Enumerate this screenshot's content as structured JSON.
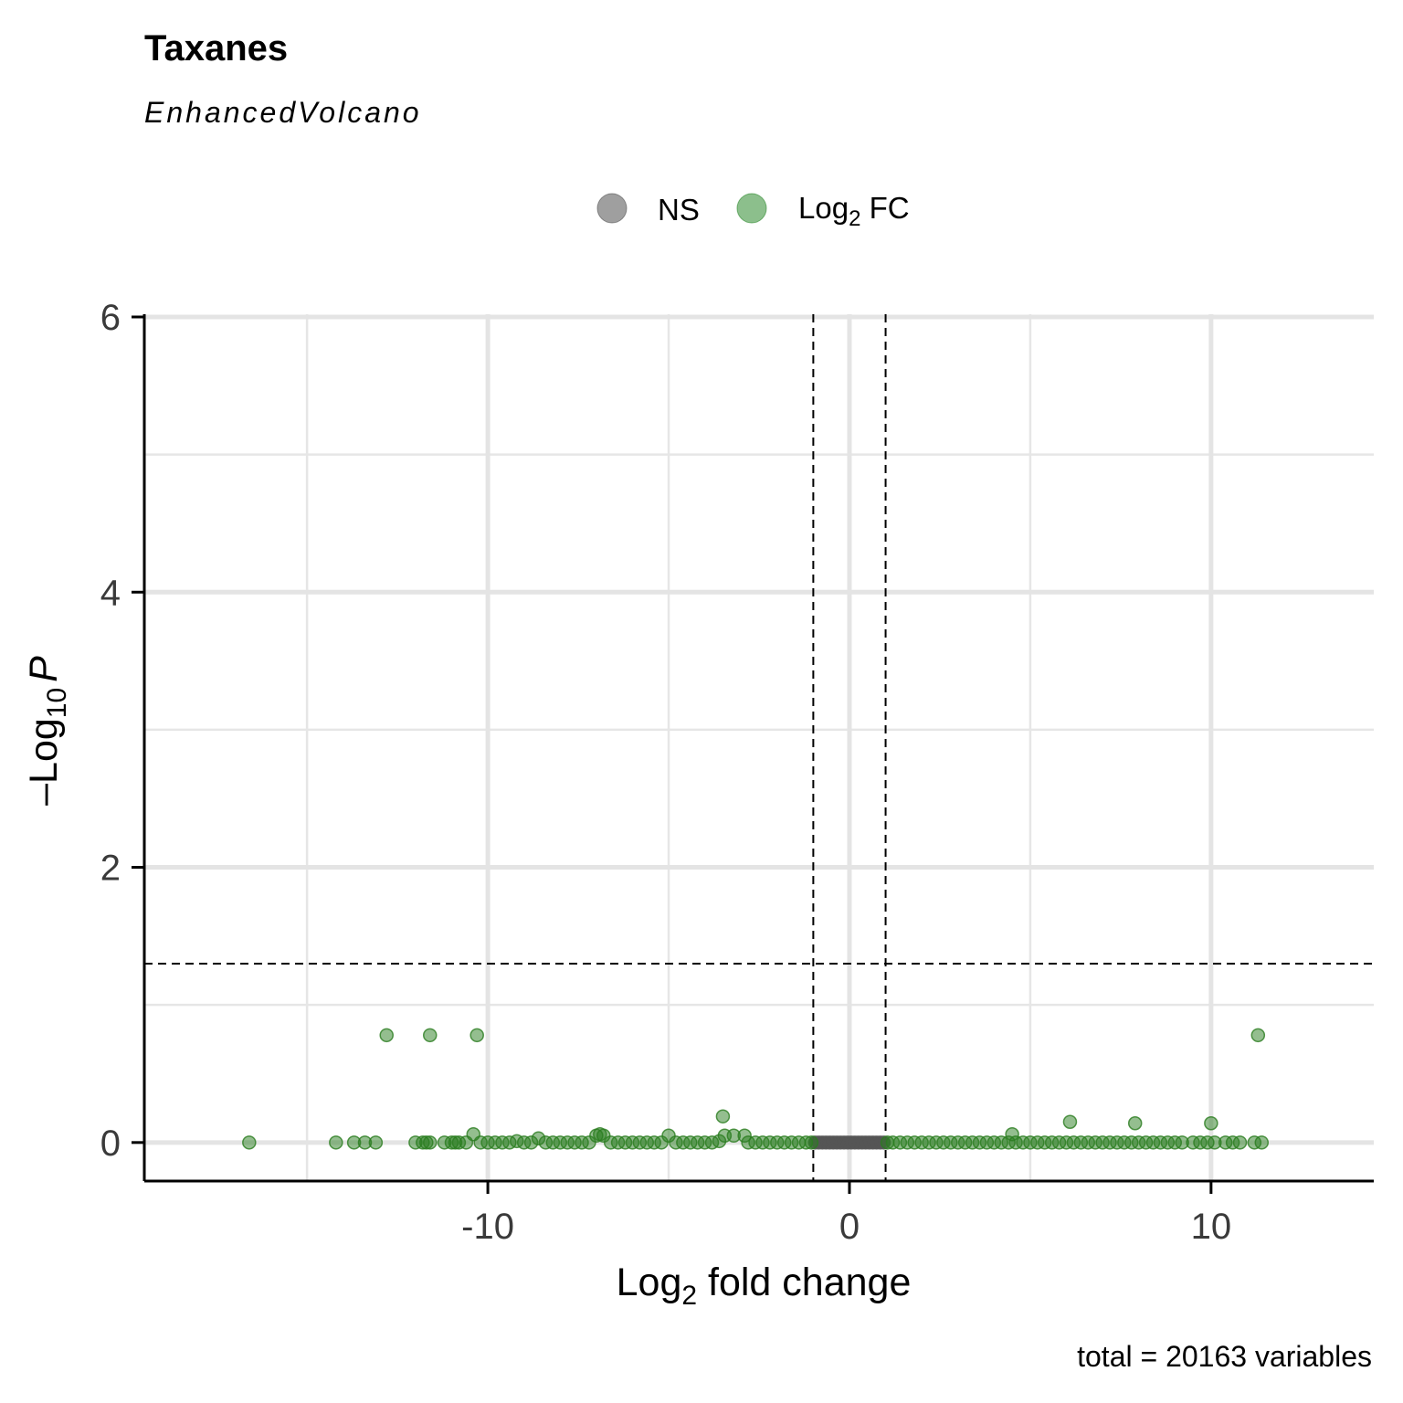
{
  "chart_data": {
    "type": "scatter",
    "title": "Taxanes",
    "subtitle": "EnhancedVolcano",
    "xlabel": {
      "main": "Log",
      "sub": "2",
      "rest": " fold change"
    },
    "ylabel": {
      "prefix": "–Log",
      "sub": "10",
      "italic": "P"
    },
    "caption": "total = 20163 variables",
    "xlim": [
      -19.5,
      14.5
    ],
    "ylim": [
      -0.28,
      6.02
    ],
    "x_ticks": [
      -10,
      0,
      10
    ],
    "x_tick_labels": [
      "-10",
      "0",
      "10"
    ],
    "y_ticks": [
      0,
      2,
      4,
      6
    ],
    "y_tick_labels": [
      "0",
      "2",
      "4",
      "6"
    ],
    "x_minor_gridlines": [
      -15,
      -5,
      5
    ],
    "y_minor_gridlines": [
      1,
      3,
      5
    ],
    "grid": true,
    "fc_cutoff": 1.0,
    "p_cutoff_neglog10": 1.3,
    "legend": {
      "position": "top",
      "items": [
        {
          "name": "NS",
          "color": "#7f7f7f"
        },
        {
          "name": "Log",
          "sub": "2",
          "after": " FC",
          "color": "#2e8b2e"
        }
      ]
    },
    "colors": {
      "ns": "#555555",
      "fc": "#2a7d1f"
    },
    "series": [
      {
        "name": "NS",
        "points": [
          [
            -0.95,
            0
          ],
          [
            -0.85,
            0
          ],
          [
            -0.75,
            0
          ],
          [
            -0.65,
            0
          ],
          [
            -0.55,
            0
          ],
          [
            -0.45,
            0
          ],
          [
            -0.35,
            0
          ],
          [
            -0.25,
            0
          ],
          [
            -0.15,
            0
          ],
          [
            -0.05,
            0
          ],
          [
            0.05,
            0
          ],
          [
            0.15,
            0
          ],
          [
            0.25,
            0
          ],
          [
            0.35,
            0
          ],
          [
            0.45,
            0
          ],
          [
            0.55,
            0
          ],
          [
            0.65,
            0
          ],
          [
            0.75,
            0
          ],
          [
            0.85,
            0
          ],
          [
            0.95,
            0
          ]
        ]
      },
      {
        "name": "Log2 FC",
        "points": [
          [
            -16.6,
            0
          ],
          [
            -14.2,
            0
          ],
          [
            -13.7,
            0
          ],
          [
            -13.4,
            0
          ],
          [
            -13.1,
            0
          ],
          [
            -12.0,
            0
          ],
          [
            -11.8,
            0
          ],
          [
            -11.7,
            0
          ],
          [
            -11.6,
            0
          ],
          [
            -11.2,
            0
          ],
          [
            -11.0,
            0
          ],
          [
            -10.9,
            0
          ],
          [
            -10.8,
            0
          ],
          [
            -10.6,
            0
          ],
          [
            -10.4,
            0.06
          ],
          [
            -10.2,
            0
          ],
          [
            -10.0,
            0
          ],
          [
            -9.8,
            0
          ],
          [
            -9.6,
            0
          ],
          [
            -9.4,
            0
          ],
          [
            -9.2,
            0.01
          ],
          [
            -9.0,
            0
          ],
          [
            -8.8,
            0
          ],
          [
            -8.6,
            0.03
          ],
          [
            -8.4,
            0
          ],
          [
            -8.2,
            0
          ],
          [
            -8.0,
            0
          ],
          [
            -7.8,
            0
          ],
          [
            -7.6,
            0
          ],
          [
            -7.4,
            0
          ],
          [
            -7.2,
            0
          ],
          [
            -7.0,
            0.05
          ],
          [
            -6.9,
            0.06
          ],
          [
            -6.8,
            0.05
          ],
          [
            -6.6,
            0
          ],
          [
            -6.4,
            0
          ],
          [
            -6.2,
            0
          ],
          [
            -6.0,
            0
          ],
          [
            -5.8,
            0
          ],
          [
            -5.6,
            0
          ],
          [
            -5.4,
            0
          ],
          [
            -5.2,
            0
          ],
          [
            -5.0,
            0.05
          ],
          [
            -4.8,
            0
          ],
          [
            -4.6,
            0
          ],
          [
            -4.4,
            0
          ],
          [
            -4.2,
            0
          ],
          [
            -4.0,
            0
          ],
          [
            -3.8,
            0
          ],
          [
            -3.6,
            0.01
          ],
          [
            -3.5,
            0.19
          ],
          [
            -3.45,
            0.05
          ],
          [
            -3.2,
            0.05
          ],
          [
            -2.9,
            0.05
          ],
          [
            -2.8,
            0
          ],
          [
            -2.6,
            0
          ],
          [
            -2.4,
            0
          ],
          [
            -2.2,
            0
          ],
          [
            -2.0,
            0
          ],
          [
            -1.8,
            0
          ],
          [
            -1.6,
            0
          ],
          [
            -1.4,
            0
          ],
          [
            -1.2,
            0
          ],
          [
            -1.05,
            0
          ],
          [
            1.05,
            0
          ],
          [
            1.2,
            0
          ],
          [
            1.4,
            0
          ],
          [
            1.6,
            0
          ],
          [
            1.8,
            0
          ],
          [
            2.0,
            0
          ],
          [
            2.2,
            0
          ],
          [
            2.4,
            0
          ],
          [
            2.6,
            0
          ],
          [
            2.8,
            0
          ],
          [
            3.0,
            0
          ],
          [
            3.2,
            0
          ],
          [
            3.4,
            0
          ],
          [
            3.6,
            0
          ],
          [
            3.8,
            0
          ],
          [
            4.0,
            0
          ],
          [
            4.2,
            0
          ],
          [
            4.4,
            0
          ],
          [
            4.5,
            0.06
          ],
          [
            4.6,
            0
          ],
          [
            4.8,
            0
          ],
          [
            5.0,
            0
          ],
          [
            5.2,
            0
          ],
          [
            5.4,
            0
          ],
          [
            5.6,
            0
          ],
          [
            5.8,
            0
          ],
          [
            6.0,
            0
          ],
          [
            6.1,
            0.15
          ],
          [
            6.2,
            0
          ],
          [
            6.4,
            0
          ],
          [
            6.6,
            0
          ],
          [
            6.8,
            0
          ],
          [
            7.0,
            0
          ],
          [
            7.2,
            0
          ],
          [
            7.4,
            0
          ],
          [
            7.6,
            0
          ],
          [
            7.8,
            0
          ],
          [
            7.9,
            0.14
          ],
          [
            8.0,
            0
          ],
          [
            8.2,
            0
          ],
          [
            8.4,
            0
          ],
          [
            8.6,
            0
          ],
          [
            8.8,
            0
          ],
          [
            9.0,
            0
          ],
          [
            9.2,
            0
          ],
          [
            9.5,
            0
          ],
          [
            9.7,
            0
          ],
          [
            9.9,
            0
          ],
          [
            10.0,
            0.14
          ],
          [
            10.1,
            0
          ],
          [
            10.4,
            0
          ],
          [
            10.6,
            0
          ],
          [
            10.8,
            0
          ],
          [
            11.2,
            0
          ],
          [
            11.4,
            0
          ],
          [
            -12.8,
            0.78
          ],
          [
            -11.6,
            0.78
          ],
          [
            -10.3,
            0.78
          ],
          [
            11.3,
            0.78
          ]
        ]
      }
    ]
  }
}
